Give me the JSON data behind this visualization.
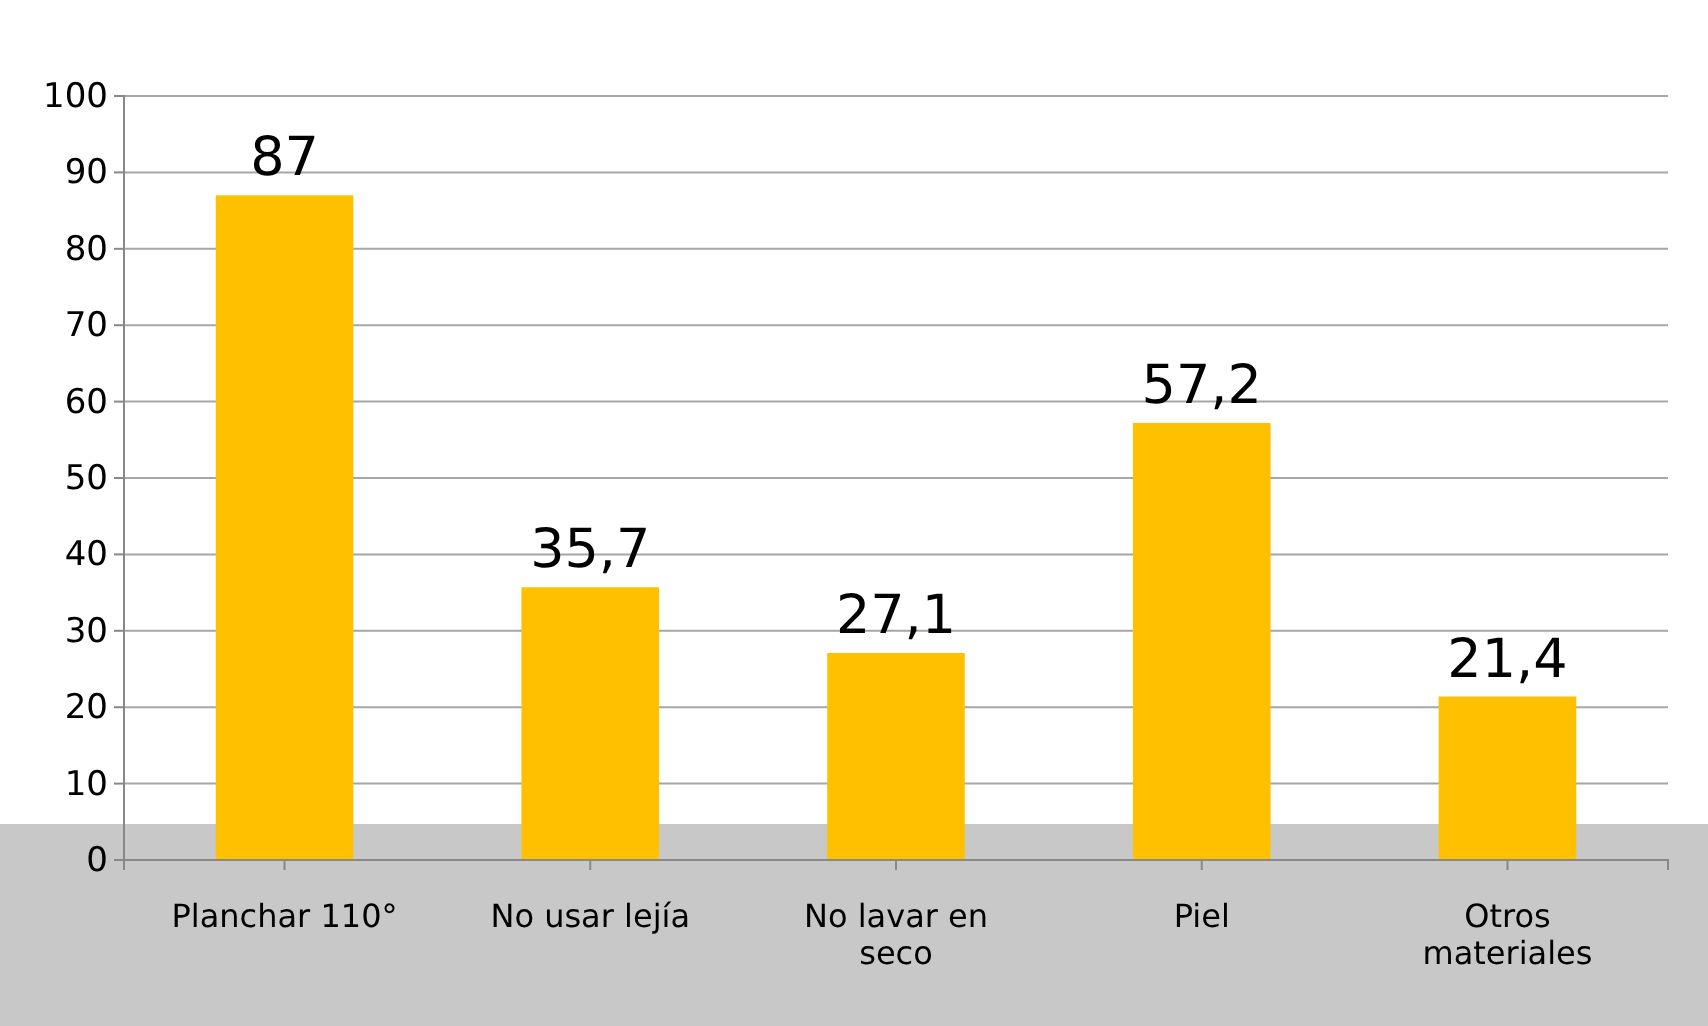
{
  "chart_data": {
    "type": "bar",
    "categories": [
      "Planchar 110°",
      "No usar lejía",
      "No lavar en seco",
      "Piel",
      "Otros materiales"
    ],
    "values": [
      87,
      35.7,
      27.1,
      57.2,
      21.4
    ],
    "value_labels": [
      "87",
      "35,7",
      "27,1",
      "57,2",
      "21,4"
    ],
    "color": "#ffc000",
    "ylim": [
      0,
      100
    ],
    "yticks": [
      0,
      10,
      20,
      30,
      40,
      50,
      60,
      70,
      80,
      90,
      100
    ],
    "grid": "y"
  }
}
